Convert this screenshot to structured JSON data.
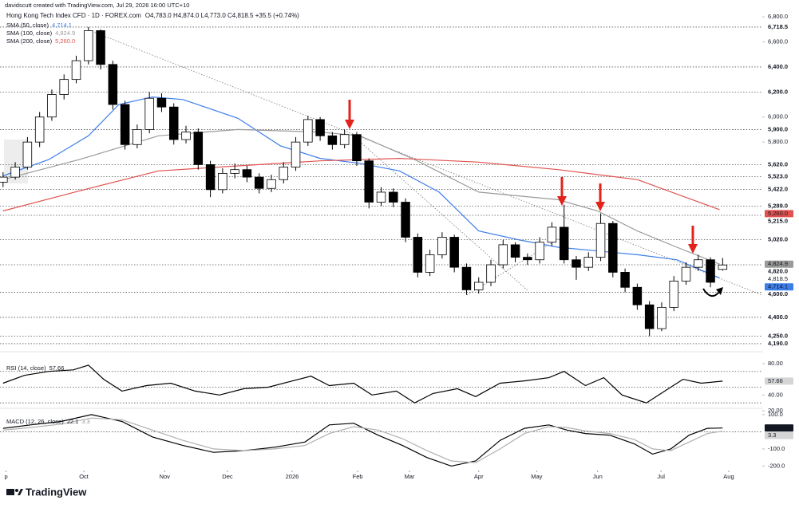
{
  "header": {
    "credit": "davidscutt created with TradingView.com, Jul 29, 2026 16:00 UTC+10",
    "symbol": "Hong Kong Tech Index CFD · 1D · FOREX.com",
    "ohlc": "O4,783.0 H4,874.0 L4,773.0 C4,818.5 +35.5 (+0.74%)"
  },
  "logo": "TradingView",
  "chart_data": [
    {
      "type": "candlestick",
      "xlim": [
        0,
        250
      ],
      "xticks": [
        {
          "value": 2,
          "label": "p"
        },
        {
          "value": 27.5,
          "label": "Oct"
        },
        {
          "value": 54,
          "label": "Nov"
        },
        {
          "value": 74.6,
          "label": "Dec"
        },
        {
          "value": 95.8,
          "label": "2026"
        },
        {
          "value": 117.3,
          "label": "Feb"
        },
        {
          "value": 134.3,
          "label": "Mar"
        },
        {
          "value": 157,
          "label": "Apr"
        },
        {
          "value": 176,
          "label": "May"
        },
        {
          "value": 196,
          "label": "Jun"
        },
        {
          "value": 216.8,
          "label": "Jul"
        },
        {
          "value": 239,
          "label": "Aug"
        }
      ],
      "ylim": [
        4164,
        6871
      ],
      "yticks": [
        {
          "value": 6800,
          "label": "6,800.0"
        },
        {
          "value": 6600,
          "label": "6,600.0"
        },
        {
          "value": 6000,
          "label": "6,000.0"
        },
        {
          "value": 5800,
          "label": "5,800.0"
        }
      ],
      "levels": [
        {
          "value": 6718.5,
          "label": "6,718.5"
        },
        {
          "value": 6400,
          "label": "6,400.0"
        },
        {
          "value": 6200,
          "label": "6,200.0"
        },
        {
          "value": 5900,
          "label": "5,900.0"
        },
        {
          "value": 5620,
          "label": "5,620.0"
        },
        {
          "value": 5523,
          "label": "5,523.0"
        },
        {
          "value": 5422,
          "label": "5,422.0"
        },
        {
          "value": 5289,
          "label": "5,289.0"
        },
        {
          "value": 5215,
          "label": "5,215.0"
        },
        {
          "value": 5020,
          "label": "5,020.0"
        },
        {
          "value": 4820,
          "label": "4,820.0"
        },
        {
          "value": 4600,
          "label": "4,600.0"
        },
        {
          "value": 4400,
          "label": "4,400.0"
        },
        {
          "value": 4250,
          "label": "4,250.0"
        },
        {
          "value": 4190,
          "label": "4,190.0"
        }
      ],
      "up_color": "#ffffff",
      "down_color": "#000000",
      "last_label": "4,818.5",
      "candles": [
        [
          1,
          5480,
          5560,
          5440,
          5520
        ],
        [
          5,
          5520,
          5640,
          5500,
          5600
        ],
        [
          9,
          5600,
          5840,
          5580,
          5800
        ],
        [
          13,
          5800,
          6040,
          5760,
          6000
        ],
        [
          17,
          6000,
          6220,
          5970,
          6180
        ],
        [
          21,
          6180,
          6340,
          6140,
          6300
        ],
        [
          25,
          6300,
          6490,
          6270,
          6450
        ],
        [
          29,
          6450,
          6718.5,
          6420,
          6690
        ],
        [
          33,
          6690,
          6700,
          6380,
          6420
        ],
        [
          37,
          6420,
          6450,
          6060,
          6100
        ],
        [
          41,
          6100,
          6130,
          5740,
          5780
        ],
        [
          45,
          5780,
          5940,
          5750,
          5900
        ],
        [
          49,
          5900,
          6200,
          5870,
          6150
        ],
        [
          53,
          6150,
          6190,
          6040,
          6080
        ],
        [
          57,
          6080,
          6110,
          5780,
          5820
        ],
        [
          61,
          5820,
          5930,
          5790,
          5880
        ],
        [
          65,
          5880,
          5910,
          5580,
          5620
        ],
        [
          69,
          5620,
          5650,
          5360,
          5420
        ],
        [
          73,
          5420,
          5590,
          5390,
          5550
        ],
        [
          77,
          5550,
          5630,
          5510,
          5580
        ],
        [
          81,
          5580,
          5610,
          5480,
          5520
        ],
        [
          85,
          5520,
          5550,
          5390,
          5430
        ],
        [
          89,
          5430,
          5540,
          5400,
          5500
        ],
        [
          93,
          5500,
          5640,
          5470,
          5600
        ],
        [
          97,
          5600,
          5840,
          5570,
          5800
        ],
        [
          101,
          5800,
          6010,
          5770,
          5980
        ],
        [
          105,
          5980,
          6000,
          5810,
          5850
        ],
        [
          109,
          5850,
          5880,
          5740,
          5780
        ],
        [
          113,
          5780,
          5900,
          5750,
          5860
        ],
        [
          117,
          5860,
          5880,
          5610,
          5650
        ],
        [
          121,
          5650,
          5670,
          5270,
          5320
        ],
        [
          125,
          5320,
          5440,
          5290,
          5400
        ],
        [
          129,
          5400,
          5430,
          5280,
          5320
        ],
        [
          133,
          5320,
          5350,
          5000,
          5040
        ],
        [
          137,
          5040,
          5070,
          4720,
          4760
        ],
        [
          141,
          4760,
          4940,
          4730,
          4900
        ],
        [
          145,
          4900,
          5080,
          4870,
          5040
        ],
        [
          149,
          5040,
          5060,
          4760,
          4800
        ],
        [
          153,
          4800,
          4830,
          4580,
          4620
        ],
        [
          157,
          4620,
          4720,
          4590,
          4680
        ],
        [
          161,
          4680,
          4860,
          4650,
          4820
        ],
        [
          165,
          4820,
          5020,
          4790,
          4980
        ],
        [
          169,
          4980,
          5000,
          4840,
          4880
        ],
        [
          173,
          4880,
          4910,
          4820,
          4860
        ],
        [
          177,
          4860,
          5040,
          4830,
          5000
        ],
        [
          181,
          5000,
          5160,
          4970,
          5120
        ],
        [
          185,
          5120,
          5300,
          4830,
          4860
        ],
        [
          189,
          4860,
          4890,
          4700,
          4800
        ],
        [
          193,
          4800,
          4920,
          4770,
          4880
        ],
        [
          197,
          4880,
          5230,
          4850,
          5150
        ],
        [
          201,
          5150,
          5170,
          4720,
          4760
        ],
        [
          205,
          4760,
          4790,
          4600,
          4640
        ],
        [
          209,
          4640,
          4670,
          4460,
          4500
        ],
        [
          213,
          4500,
          4530,
          4250,
          4310
        ],
        [
          217,
          4310,
          4520,
          4290,
          4480
        ],
        [
          221,
          4480,
          4730,
          4450,
          4690
        ],
        [
          225,
          4690,
          4840,
          4660,
          4800
        ],
        [
          229,
          4800,
          4900,
          4770,
          4860
        ],
        [
          233,
          4860,
          4880,
          4640,
          4680
        ],
        [
          237,
          4783,
          4874,
          4773,
          4818.5
        ]
      ],
      "series": [
        {
          "name": "SMA (50, close)",
          "value_label": "4,714.1",
          "color": "#3d7ee8",
          "x": [
            1,
            16,
            29,
            39,
            50,
            60,
            78,
            92,
            105,
            118,
            131,
            144,
            157,
            170,
            183,
            196,
            209,
            222,
            236
          ],
          "values": [
            5530,
            5660,
            5850,
            6100,
            6160,
            6140,
            5990,
            5770,
            5670,
            5630,
            5570,
            5400,
            5090,
            5020,
            4960,
            4930,
            4900,
            4860,
            4714.1
          ]
        },
        {
          "name": "SMA (100, close)",
          "value_label": "4,824.9",
          "color": "#9a9a9a",
          "x": [
            1,
            26,
            52,
            78,
            105,
            118,
            136,
            157,
            183,
            196,
            209,
            222,
            236
          ],
          "values": [
            5500,
            5660,
            5850,
            5900,
            5880,
            5850,
            5660,
            5400,
            5340,
            5250,
            5090,
            4960,
            4824.9
          ]
        },
        {
          "name": "SMA (200, close)",
          "value_label": "5,260.0",
          "color": "#e0524f",
          "x": [
            1,
            26,
            52,
            78,
            105,
            131,
            157,
            183,
            209,
            236
          ],
          "values": [
            5250,
            5410,
            5570,
            5610,
            5650,
            5670,
            5640,
            5580,
            5500,
            5260
          ]
        }
      ]
    },
    {
      "type": "line",
      "title": "RSI (14, close)",
      "ylim": [
        17,
        88
      ],
      "yticks": [
        {
          "value": 80,
          "label": "80.00"
        },
        {
          "value": 40,
          "label": "40.00"
        },
        {
          "value": 20,
          "label": "20.00"
        }
      ],
      "levels": [
        70,
        50,
        30
      ],
      "series": [
        {
          "value_label": "57.66",
          "color": "#000000",
          "x": [
            1,
            8,
            16,
            24,
            29,
            34,
            40,
            48,
            56,
            64,
            72,
            80,
            88,
            96,
            102,
            108,
            116,
            122,
            130,
            136,
            142,
            150,
            156,
            164,
            172,
            180,
            185,
            192,
            198,
            204,
            212,
            218,
            224,
            230,
            237
          ],
          "values": [
            55,
            65,
            70,
            72,
            78,
            60,
            45,
            52,
            55,
            45,
            40,
            48,
            50,
            58,
            64,
            52,
            55,
            40,
            45,
            30,
            42,
            48,
            38,
            55,
            58,
            62,
            70,
            52,
            62,
            40,
            30,
            45,
            60,
            55,
            57.66
          ]
        }
      ]
    },
    {
      "type": "line",
      "title": "MACD (12, 26, close)",
      "ylim": [
        -226,
        123
      ],
      "yticks": [
        {
          "value": 100,
          "label": "100.0"
        },
        {
          "value": -100,
          "label": "-100.0"
        },
        {
          "value": -200,
          "label": "-200.0"
        }
      ],
      "levels": [
        0
      ],
      "series": [
        {
          "value_label": "22.1",
          "color": "#000000",
          "x": [
            1,
            10,
            20,
            30,
            40,
            50,
            60,
            70,
            80,
            90,
            100,
            108,
            116,
            124,
            132,
            140,
            148,
            156,
            164,
            172,
            180,
            186,
            192,
            200,
            208,
            214,
            220,
            226,
            232,
            237
          ],
          "values": [
            20,
            40,
            60,
            100,
            60,
            -30,
            -80,
            -120,
            -110,
            -90,
            -60,
            40,
            50,
            -20,
            -80,
            -150,
            -200,
            -170,
            -50,
            20,
            40,
            10,
            -10,
            -20,
            -70,
            -130,
            -100,
            -20,
            20,
            22.1
          ]
        },
        {
          "value_label": "3.3",
          "color": "#b0b0b0",
          "x": [
            1,
            10,
            20,
            30,
            40,
            50,
            60,
            70,
            80,
            90,
            100,
            108,
            116,
            124,
            132,
            140,
            148,
            156,
            164,
            172,
            180,
            186,
            192,
            200,
            208,
            214,
            220,
            226,
            232,
            237
          ],
          "values": [
            10,
            25,
            45,
            80,
            70,
            10,
            -50,
            -100,
            -110,
            -100,
            -80,
            -10,
            30,
            10,
            -40,
            -110,
            -170,
            -180,
            -100,
            -10,
            30,
            25,
            5,
            -10,
            -45,
            -100,
            -110,
            -60,
            -10,
            3.3
          ]
        }
      ]
    }
  ]
}
